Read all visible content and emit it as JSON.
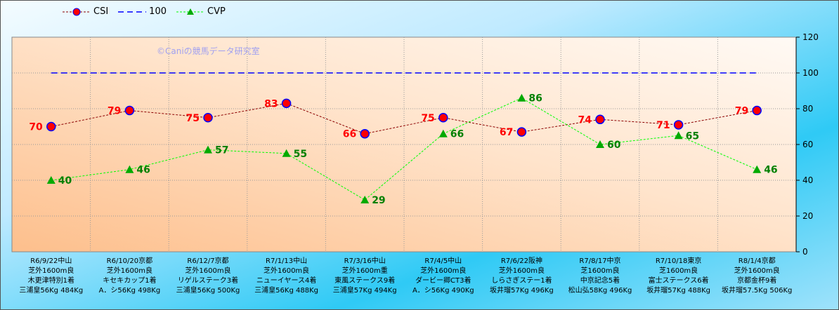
{
  "chart_data": {
    "type": "line",
    "watermark": "©Caniの競馬データ研究室",
    "categories": [
      [
        "R6/9/22中山",
        "芝外1600m良",
        "木更津特別1着",
        "三浦皇56Kg 484Kg"
      ],
      [
        "R6/10/20京都",
        "芝外1600m良",
        "キセキカップ1着",
        "A．シ56Kg 498Kg"
      ],
      [
        "R6/12/7京都",
        "芝外1600m良",
        "リゲルステーク3着",
        "三浦皇56Kg 500Kg"
      ],
      [
        "R7/1/13中山",
        "芝外1600m良",
        "ニューイヤース4着",
        "三浦皇56Kg 488Kg"
      ],
      [
        "R7/3/16中山",
        "芝外1600m重",
        "東風ステークス9着",
        "三浦皇57Kg 494Kg"
      ],
      [
        "R7/4/5中山",
        "芝外1600m良",
        "ダービー卿CT3着",
        "A．シ56Kg 490Kg"
      ],
      [
        "R7/6/22阪神",
        "芝外1600m良",
        "しらさぎステー1着",
        "坂井瑠57Kg 496Kg"
      ],
      [
        "R7/8/17中京",
        "芝1600m良",
        "中京記念5着",
        "松山弘58Kg 496Kg"
      ],
      [
        "R7/10/18東京",
        "芝1600m良",
        "富士ステークス6着",
        "坂井瑠57Kg 488Kg"
      ],
      [
        "R8/1/4京都",
        "芝外1600m良",
        "京都金杯9着",
        "坂井瑠57.5Kg 506Kg"
      ]
    ],
    "series": [
      {
        "name": "CSI",
        "values": [
          70,
          79,
          75,
          83,
          66,
          75,
          67,
          74,
          71,
          79
        ],
        "color": "#8b0000",
        "marker_fill": "#ff0000",
        "marker_edge": "#0000ff",
        "label_color": "#ff0000"
      },
      {
        "name": "100",
        "values": [
          100,
          100,
          100,
          100,
          100,
          100,
          100,
          100,
          100,
          100
        ],
        "color": "#0000ff"
      },
      {
        "name": "CVP",
        "values": [
          40,
          46,
          57,
          55,
          29,
          66,
          86,
          60,
          65,
          46
        ],
        "color": "#00ff00",
        "marker_fill": "#00aa00",
        "label_color": "#008000"
      }
    ],
    "y_ticks": [
      0,
      20,
      40,
      60,
      80,
      100,
      120
    ],
    "ylim": [
      0,
      120
    ],
    "y_axis_side": "right",
    "grid": true,
    "legend": "top-left"
  }
}
